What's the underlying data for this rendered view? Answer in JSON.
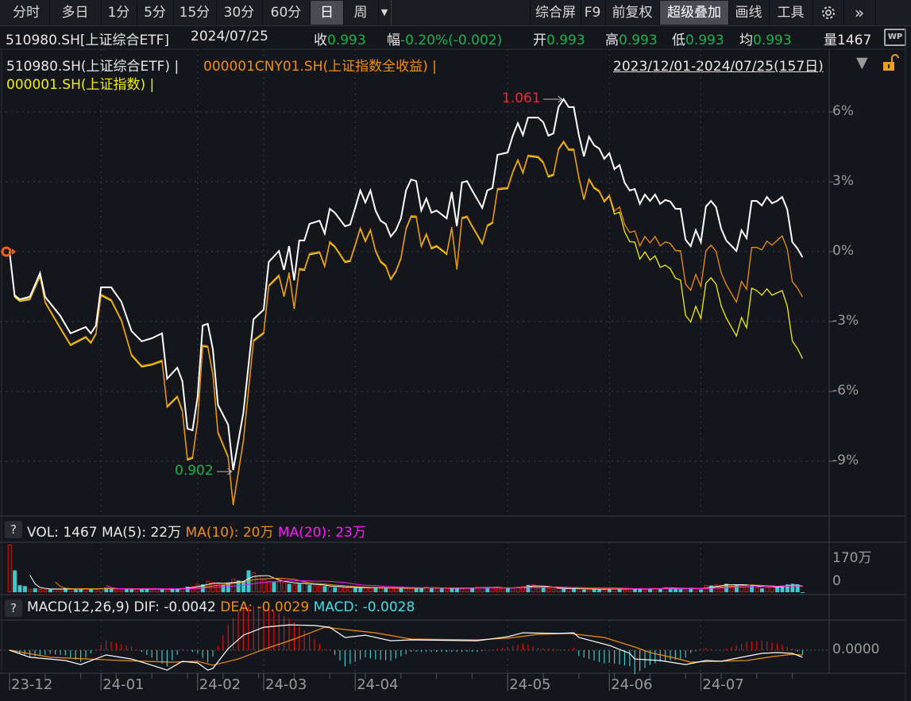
{
  "toolbar": {
    "periods": [
      {
        "label": "分时"
      },
      {
        "label": "多日"
      },
      {
        "label": "1分"
      },
      {
        "label": "5分"
      },
      {
        "label": "15分"
      },
      {
        "label": "30分"
      },
      {
        "label": "60分"
      },
      {
        "label": "日",
        "active": true
      },
      {
        "label": "周"
      }
    ],
    "more_icon": "dropdown-caret-icon",
    "tools": [
      {
        "label": "综合屏"
      },
      {
        "label": "F9"
      },
      {
        "label": "前复权"
      },
      {
        "label": "超级叠加",
        "active": true
      },
      {
        "label": "画线"
      },
      {
        "label": "工具"
      }
    ],
    "settings_icon": "gear-icon",
    "expand_icon": "double-chevron-right-icon"
  },
  "quote": {
    "symbol": "510980.SH[上证综合ETF]",
    "date": "2024/07/25",
    "close_label": "收",
    "close": "0.993",
    "change_label": "幅",
    "change": "-0.20%(-0.002)",
    "open_label": "开",
    "open": "0.993",
    "high_label": "高",
    "high": "0.993",
    "low_label": "低",
    "low": "0.993",
    "avg_label": "均",
    "avg": "0.993",
    "volume_label": "量",
    "volume": "1467",
    "wp_icon_text": "WP"
  },
  "legend": {
    "series1": "510980.SH(上证综合ETF) |",
    "series2": "000001CNY01.SH(上证指数全收益) |",
    "series3": "000001.SH(上证指数) |",
    "range": "2023/12/01-2024/07/25(157日)",
    "range_icon": "triangle-down-icon",
    "lock_icon": "unlock-icon"
  },
  "colors": {
    "background": "#14161b",
    "etf": "#ffffff",
    "total_return": "#f0900a",
    "index": "#f0f000",
    "up": "#e01010",
    "down": "#3cc8cc",
    "high_label": "#f0283c",
    "low_label": "#19b34f",
    "ma20": "#ff1aff"
  },
  "chart_data": [
    {
      "type": "line",
      "title": "",
      "x_unit": "trading day (0 = 2023/12/01, 156 = 2024/07/25)",
      "y_axis": {
        "ticks": [
          "6%",
          "3%",
          "0%",
          "-3%",
          "-6%",
          "-9%"
        ],
        "tick_values": [
          6,
          3,
          0,
          -3,
          -6,
          -9
        ],
        "position": "right"
      },
      "grid": true,
      "annotations": {
        "high": "1.061",
        "high_day": 109,
        "low": "0.902",
        "low_day": 44
      },
      "x": [
        0,
        1,
        2,
        4,
        6,
        7,
        10,
        12,
        15,
        16,
        17,
        18,
        20,
        22,
        24,
        26,
        28,
        30,
        31,
        33,
        34,
        35,
        36,
        37,
        38,
        39,
        40,
        41,
        43,
        44,
        46,
        48,
        50,
        51,
        53,
        54,
        55,
        56,
        57,
        58,
        59,
        61,
        62,
        63,
        64,
        66,
        67,
        68,
        69,
        70,
        71,
        72,
        73,
        74,
        75,
        76,
        77,
        78,
        79,
        80,
        81,
        82,
        83,
        84,
        86,
        87,
        88,
        89,
        90,
        91,
        93,
        94,
        95,
        96,
        98,
        99,
        100,
        101,
        102,
        104,
        105,
        106,
        107,
        108,
        109,
        110,
        111,
        112,
        113,
        114,
        115,
        116,
        117,
        118,
        119,
        120,
        121,
        122,
        123,
        124,
        125,
        126,
        127,
        128,
        129,
        130,
        131,
        132,
        133,
        134,
        135,
        136,
        137,
        138,
        139,
        140,
        141,
        143,
        144,
        145,
        146,
        147,
        148,
        149,
        150,
        151,
        152,
        153,
        154,
        155,
        156
      ],
      "series": [
        {
          "name": "510980.SH(上证综合ETF)",
          "color": "#ffffff",
          "values": [
            0.0,
            -1.88,
            -2.05,
            -1.94,
            -0.92,
            -1.94,
            -2.76,
            -3.51,
            -3.24,
            -3.51,
            -3.17,
            -1.53,
            -1.53,
            -2.15,
            -3.41,
            -3.85,
            -3.72,
            -3.51,
            -5.46,
            -4.98,
            -5.56,
            -7.6,
            -7.67,
            -6.24,
            -3.17,
            -3.1,
            -4.19,
            -6.58,
            -7.43,
            -9.38,
            -6.92,
            -2.9,
            -2.49,
            -0.44,
            0.03,
            -0.78,
            0.24,
            -1.23,
            0.48,
            0.48,
            1.19,
            1.33,
            0.78,
            1.84,
            1.67,
            1.09,
            1.16,
            1.88,
            2.63,
            2.11,
            2.63,
            1.77,
            1.33,
            1.19,
            0.65,
            0.92,
            1.43,
            2.63,
            3.1,
            3.03,
            1.77,
            2.28,
            1.67,
            1.77,
            1.43,
            2.56,
            1.09,
            2.97,
            3.03,
            2.63,
            1.88,
            2.63,
            2.73,
            4.16,
            4.26,
            4.98,
            5.52,
            5.01,
            5.76,
            5.76,
            5.56,
            4.98,
            5.08,
            6.21,
            6.55,
            6.21,
            6.21,
            5.01,
            4.09,
            4.94,
            4.57,
            4.43,
            3.99,
            4.23,
            3.55,
            3.72,
            2.97,
            2.63,
            2.69,
            2.05,
            2.45,
            2.18,
            2.45,
            2.05,
            2.22,
            2.15,
            1.84,
            1.84,
            0.51,
            0.24,
            0.92,
            0.41,
            1.94,
            2.18,
            1.91,
            0.99,
            0.48,
            0.03,
            0.92,
            0.58,
            2.18,
            2.18,
            1.98,
            2.35,
            2.08,
            2.18,
            2.35,
            1.81,
            0.41,
            0.14,
            -0.24
          ]
        },
        {
          "name": "000001CNY01.SH(上证指数全收益)",
          "color": "#f0900a",
          "values": [
            0.0,
            -1.9,
            -2.08,
            -2.01,
            -1.02,
            -2.14,
            -3.26,
            -3.98,
            -3.64,
            -3.88,
            -3.5,
            -1.83,
            -2.06,
            -2.92,
            -4.41,
            -4.9,
            -4.82,
            -4.66,
            -6.63,
            -6.2,
            -6.81,
            -8.9,
            -8.82,
            -7.24,
            -4.02,
            -4.05,
            -5.24,
            -7.73,
            -8.78,
            -10.83,
            -8.1,
            -3.8,
            -3.46,
            -1.44,
            -1.0,
            -1.88,
            -0.89,
            -2.4,
            -0.72,
            -0.75,
            -0.08,
            0.0,
            -0.59,
            0.44,
            0.24,
            -0.41,
            -0.37,
            0.31,
            1.03,
            0.48,
            0.96,
            0.07,
            -0.4,
            -0.58,
            -1.15,
            -0.82,
            -0.25,
            1.01,
            1.54,
            1.53,
            0.27,
            0.78,
            0.17,
            0.27,
            -0.07,
            1.06,
            -0.71,
            1.47,
            1.53,
            1.13,
            0.38,
            1.15,
            1.27,
            2.71,
            2.76,
            3.45,
            3.96,
            3.42,
            4.15,
            4.09,
            3.86,
            3.26,
            3.33,
            4.43,
            4.75,
            4.41,
            4.41,
            3.21,
            2.29,
            3.14,
            2.77,
            2.63,
            2.19,
            2.43,
            1.75,
            1.92,
            1.17,
            0.83,
            0.89,
            0.25,
            0.65,
            0.38,
            0.65,
            0.25,
            0.42,
            0.35,
            0.04,
            0.04,
            -1.39,
            -1.66,
            -0.98,
            -1.49,
            0.04,
            0.28,
            0.01,
            -0.91,
            -1.42,
            -2.17,
            -1.28,
            -1.62,
            0.18,
            0.18,
            0.08,
            0.45,
            0.28,
            0.48,
            0.68,
            0.11,
            -1.29,
            -1.56,
            -1.94
          ]
        },
        {
          "name": "000001.SH(上证指数)",
          "color": "#f0f000",
          "values": [
            0.0,
            -1.95,
            -2.13,
            -2.06,
            -1.07,
            -2.19,
            -3.31,
            -4.03,
            -3.69,
            -3.93,
            -3.55,
            -1.88,
            -2.11,
            -2.97,
            -4.46,
            -4.95,
            -4.87,
            -4.71,
            -6.68,
            -6.25,
            -6.86,
            -8.95,
            -8.87,
            -7.29,
            -4.07,
            -4.1,
            -5.29,
            -7.78,
            -8.83,
            -10.88,
            -8.15,
            -3.85,
            -3.51,
            -1.49,
            -1.05,
            -1.93,
            -0.94,
            -2.45,
            -0.77,
            -0.8,
            -0.13,
            -0.05,
            -0.64,
            0.39,
            0.19,
            -0.46,
            -0.42,
            0.26,
            0.98,
            0.43,
            0.91,
            0.02,
            -0.45,
            -0.63,
            -1.2,
            -0.87,
            -0.3,
            0.96,
            1.49,
            1.48,
            0.22,
            0.73,
            0.12,
            0.22,
            -0.12,
            1.01,
            -0.76,
            1.42,
            1.48,
            1.08,
            0.33,
            1.1,
            1.22,
            2.66,
            2.71,
            3.4,
            3.91,
            3.37,
            4.1,
            4.04,
            3.81,
            3.21,
            3.28,
            4.38,
            4.7,
            4.36,
            4.36,
            3.16,
            2.24,
            3.09,
            2.72,
            2.58,
            2.14,
            2.38,
            1.61,
            1.7,
            0.86,
            0.43,
            0.41,
            -0.32,
            -0.01,
            -0.36,
            -0.18,
            -0.67,
            -0.58,
            -0.74,
            -1.14,
            -1.22,
            -2.74,
            -3.02,
            -2.35,
            -2.87,
            -1.35,
            -1.12,
            -1.4,
            -2.33,
            -2.85,
            -3.62,
            -2.83,
            -3.27,
            -1.57,
            -1.67,
            -1.87,
            -1.6,
            -1.87,
            -1.77,
            -1.67,
            -2.34,
            -3.84,
            -4.16,
            -4.59
          ]
        }
      ]
    },
    {
      "type": "bar",
      "title": "VOL",
      "header": {
        "vol": "VOL: 1467",
        "ma5": "MA(5): 22万",
        "ma10": "MA(10): 20万",
        "ma20": "MA(20): 23万"
      },
      "y_axis": {
        "ticks": [
          "170万",
          "0"
        ],
        "max": 170,
        "unit": "万"
      },
      "volume": [
        170,
        78,
        25,
        22,
        12,
        14,
        12,
        10,
        10,
        12,
        12,
        14,
        12,
        10,
        12,
        14,
        12,
        12,
        14,
        16,
        12,
        10,
        12,
        14,
        10,
        12,
        12,
        14,
        10,
        12,
        10,
        10,
        12,
        14,
        16,
        20,
        22,
        30,
        28,
        40,
        36,
        30,
        26,
        34,
        48,
        42,
        40,
        78,
        72,
        60,
        46,
        40,
        36,
        38,
        36,
        30,
        28,
        30,
        34,
        26,
        22,
        24,
        22,
        20,
        18,
        18,
        16,
        18,
        16,
        16,
        18,
        16,
        16,
        14,
        14,
        16,
        16,
        14,
        14,
        14,
        16,
        14,
        20,
        16,
        14,
        14,
        14,
        16,
        14,
        14,
        16,
        14,
        20,
        18,
        16,
        16,
        16,
        14,
        14,
        16,
        20,
        22,
        26,
        28,
        16,
        18,
        14,
        12,
        14,
        12,
        14,
        14,
        12,
        10,
        10,
        12,
        12,
        10,
        12,
        14,
        12,
        10,
        12,
        14,
        12,
        10,
        12,
        16,
        14,
        18,
        12,
        12,
        14,
        10,
        16,
        14,
        10,
        26,
        24,
        28,
        26,
        30,
        24,
        26,
        28,
        22,
        26,
        16,
        14,
        20,
        22,
        18,
        24,
        28,
        30,
        28,
        0.15
      ],
      "up": [
        1,
        0,
        0,
        0,
        1,
        0,
        1,
        1,
        0,
        1,
        1,
        0,
        1,
        0,
        0,
        1,
        0,
        1,
        1,
        0,
        0,
        1,
        1,
        0,
        0,
        1,
        0,
        0,
        1,
        1,
        0,
        1,
        0,
        0,
        1,
        0,
        1,
        1,
        0,
        1,
        1,
        1,
        0,
        0,
        1,
        0,
        0,
        0,
        1,
        1,
        1,
        1,
        0,
        1,
        1,
        0,
        1,
        0,
        1,
        0,
        1,
        1,
        0,
        1,
        0,
        1,
        1,
        1,
        0,
        0,
        1,
        1,
        0,
        1,
        0,
        1,
        1,
        0,
        1,
        1,
        0,
        0,
        1,
        0,
        1,
        0,
        1,
        0,
        0,
        1,
        1,
        0,
        1,
        1,
        0,
        1,
        1,
        1,
        0,
        1,
        1,
        1,
        0,
        1,
        1,
        0,
        1,
        1,
        1,
        0,
        1,
        0,
        1,
        0,
        1,
        0,
        0,
        1,
        0,
        1,
        0,
        1,
        1,
        0,
        0,
        1,
        0,
        1,
        0,
        1,
        0,
        0,
        0,
        1,
        0,
        1,
        0,
        1,
        0,
        1,
        1,
        0,
        1,
        0,
        1,
        1,
        0,
        1,
        0,
        1,
        1,
        0,
        0,
        0,
        0,
        0,
        0
      ]
    },
    {
      "type": "line",
      "title": "MACD(12,26,9)",
      "header": {
        "name": "MACD(12,26,9)",
        "dif": "DIF: -0.0042",
        "dea": "DEA: -0.0029",
        "macd": "MACD: -0.0028"
      },
      "y_axis": {
        "ticks": [
          "0.0000"
        ]
      },
      "dif": {
        "x": [
          0,
          4,
          11,
          14,
          19,
          24,
          28,
          31,
          34,
          37,
          39,
          40,
          43,
          46,
          50,
          55,
          60,
          63,
          66,
          70,
          75,
          79,
          92,
          98,
          101,
          108,
          111,
          112,
          118,
          122,
          123,
          128,
          133,
          137,
          140,
          144,
          148,
          151,
          154,
          156
        ],
        "values": [
          0,
          -0.0042,
          -0.0061,
          -0.0085,
          -0.0028,
          -0.0052,
          -0.0089,
          -0.0118,
          -0.0066,
          -0.0075,
          -0.0118,
          -0.0108,
          0.0009,
          0.0089,
          0.0136,
          0.015,
          0.0146,
          0.0136,
          0.0075,
          0.0089,
          0.0056,
          0.0061,
          0.0056,
          0.008,
          0.0103,
          0.0099,
          0.0103,
          0.0075,
          0.0028,
          -0.0019,
          -0.0052,
          -0.0061,
          -0.0085,
          -0.0061,
          -0.0066,
          -0.0042,
          -0.0019,
          -0.0014,
          -0.0019,
          -0.0042
        ]
      },
      "dea": {
        "x": [
          0,
          8,
          22,
          32,
          37,
          40,
          45,
          50,
          56,
          62,
          72,
          79,
          92,
          98,
          104,
          110,
          117,
          123,
          126,
          131,
          134,
          139,
          145,
          150,
          154,
          156
        ],
        "values": [
          0,
          -0.0042,
          -0.0061,
          -0.0071,
          -0.0066,
          -0.0089,
          -0.0052,
          0.0005,
          0.0066,
          0.0136,
          0.0103,
          0.0066,
          0.0061,
          0.0071,
          0.0094,
          0.0099,
          0.0075,
          0.0019,
          -0.0014,
          -0.0047,
          -0.0071,
          -0.0066,
          -0.0061,
          -0.0038,
          -0.0024,
          -0.0029
        ]
      }
    }
  ],
  "x_axis": {
    "ticks": [
      {
        "label": "23-12",
        "day": 0
      },
      {
        "label": "24-01",
        "day": 18
      },
      {
        "label": "24-02",
        "day": 37
      },
      {
        "label": "24-03",
        "day": 50
      },
      {
        "label": "24-04",
        "day": 68
      },
      {
        "label": "24-05",
        "day": 98
      },
      {
        "label": "24-06",
        "day": 118
      },
      {
        "label": "24-07",
        "day": 136
      }
    ]
  },
  "help_label": "?"
}
